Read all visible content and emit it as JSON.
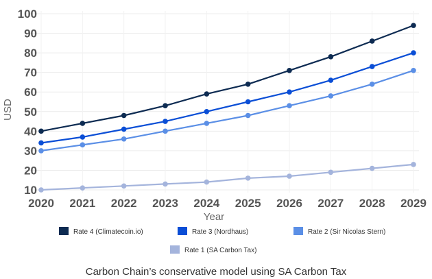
{
  "chart_data": {
    "type": "line",
    "title": "",
    "xlabel": "Year",
    "ylabel": "USD",
    "x": [
      2020,
      2021,
      2022,
      2023,
      2024,
      2025,
      2026,
      2027,
      2028,
      2029
    ],
    "ylim": [
      10,
      100
    ],
    "yticks": [
      10,
      20,
      30,
      40,
      50,
      60,
      70,
      80,
      90,
      100
    ],
    "grid": true,
    "legend_position": "bottom",
    "series": [
      {
        "name": "Rate 4 (Climatecoin.io)",
        "color": "#0d2b52",
        "values": [
          40,
          44,
          48,
          53,
          59,
          64,
          71,
          78,
          86,
          94
        ]
      },
      {
        "name": "Rate 3 (Nordhaus)",
        "color": "#0a4ed6",
        "values": [
          34,
          37,
          41,
          45,
          50,
          55,
          60,
          66,
          73,
          80
        ]
      },
      {
        "name": "Rate 2 (Sir Nicolas Stern)",
        "color": "#5b8fe6",
        "values": [
          30,
          33,
          36,
          40,
          44,
          48,
          53,
          58,
          64,
          71
        ]
      },
      {
        "name": "Rate 1 (SA Carbon Tax)",
        "color": "#a4b4dc",
        "values": [
          10,
          11,
          12,
          13,
          14,
          16,
          17,
          19,
          21,
          23
        ]
      }
    ],
    "caption": "Carbon Chain’s conservative model using SA Carbon Tax"
  }
}
